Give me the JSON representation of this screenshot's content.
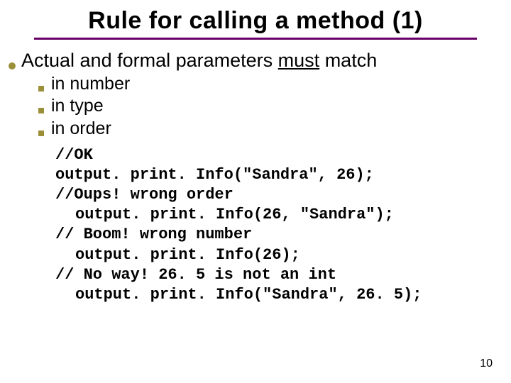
{
  "title": "Rule for calling a method (1)",
  "topline": {
    "prefix": "Actual and formal parameters ",
    "emph": "must",
    "suffix": " match"
  },
  "subitems": [
    "in number",
    "in type",
    "in order"
  ],
  "code": [
    {
      "text": "//OK",
      "indent": false
    },
    {
      "text": "output. print. Info(\"Sandra\", 26);",
      "indent": false
    },
    {
      "text": "//Oups! wrong order",
      "indent": false
    },
    {
      "text": "output. print. Info(26, \"Sandra\");",
      "indent": true
    },
    {
      "text": "// Boom! wrong number",
      "indent": false
    },
    {
      "text": "output. print. Info(26);",
      "indent": true
    },
    {
      "text": "// No way! 26. 5 is not an int",
      "indent": false
    },
    {
      "text": "output. print. Info(\"Sandra\", 26. 5);",
      "indent": true
    }
  ],
  "page_number": "10",
  "colors": {
    "rule": "#660066",
    "bullet": "#9b8f3a",
    "background": "#ffffff",
    "text": "#000000"
  }
}
